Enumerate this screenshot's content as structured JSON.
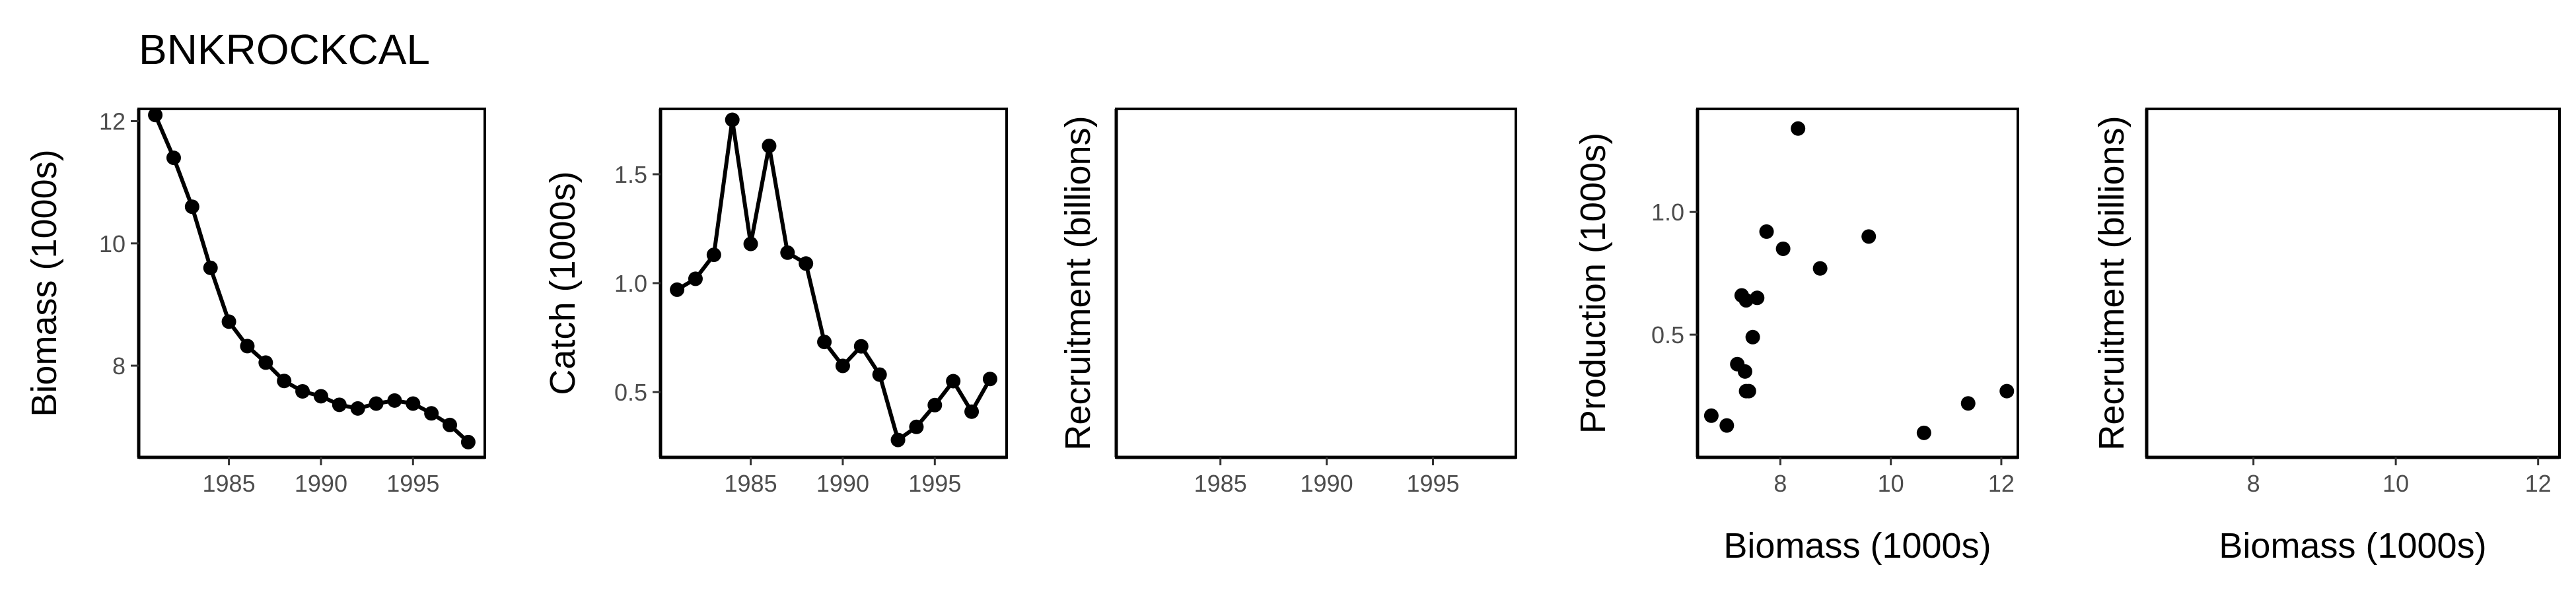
{
  "title": "BNKROCKCAL",
  "colors": {
    "series": "#000000",
    "axis": "#000000",
    "tick_label": "#4d4d4d",
    "background": "#ffffff"
  },
  "chart_data": [
    {
      "id": "biomass",
      "type": "line",
      "markers": true,
      "xlabel": "",
      "ylabel": "Biomass (1000s)",
      "xlim": [
        1980.1,
        1998.9
      ],
      "ylim": [
        6.5,
        12.2
      ],
      "xticks": [
        1985,
        1990,
        1995
      ],
      "yticks": [
        8,
        10,
        12
      ],
      "x": [
        1981,
        1982,
        1983,
        1984,
        1985,
        1986,
        1987,
        1988,
        1989,
        1990,
        1991,
        1992,
        1993,
        1994,
        1995,
        1996,
        1997,
        1998
      ],
      "y": [
        12.1,
        11.4,
        10.6,
        9.6,
        8.72,
        8.32,
        8.05,
        7.75,
        7.58,
        7.5,
        7.36,
        7.3,
        7.38,
        7.43,
        7.38,
        7.22,
        7.03,
        6.75
      ]
    },
    {
      "id": "catch",
      "type": "line",
      "markers": true,
      "xlabel": "",
      "ylabel": "Catch (1000s)",
      "xlim": [
        1980.1,
        1998.9
      ],
      "ylim": [
        0.2,
        1.8
      ],
      "xticks": [
        1985,
        1990,
        1995
      ],
      "yticks": [
        0.5,
        1.0,
        1.5
      ],
      "ytick_labels": [
        "0.5",
        "1.0",
        "1.5"
      ],
      "x": [
        1981,
        1982,
        1983,
        1984,
        1985,
        1986,
        1987,
        1988,
        1989,
        1990,
        1991,
        1992,
        1993,
        1994,
        1995,
        1996,
        1997,
        1998
      ],
      "y": [
        0.97,
        1.02,
        1.13,
        1.75,
        1.18,
        1.63,
        1.14,
        1.09,
        0.73,
        0.62,
        0.71,
        0.58,
        0.28,
        0.34,
        0.44,
        0.55,
        0.41,
        0.56
      ]
    },
    {
      "id": "recruitment-time",
      "type": "line",
      "markers": false,
      "xlabel": "",
      "ylabel": "Recruitment (billions)",
      "xlim": [
        1980.1,
        1998.9
      ],
      "xticks": [
        1985,
        1990,
        1995
      ],
      "yticks": [],
      "x": [],
      "y": []
    },
    {
      "id": "production",
      "type": "scatter",
      "xlabel": "Biomass (1000s)",
      "ylabel": "Production (1000s)",
      "xlim": [
        6.5,
        12.3
      ],
      "ylim": [
        0.0,
        1.42
      ],
      "xticks": [
        8,
        10,
        12
      ],
      "yticks": [
        0.5,
        1.0
      ],
      "ytick_labels": [
        "0.5",
        "1.0"
      ],
      "x": [
        6.75,
        7.03,
        7.22,
        7.3,
        7.36,
        7.38,
        7.43,
        7.38,
        7.5,
        7.58,
        7.75,
        8.05,
        8.32,
        8.72,
        9.6,
        10.6,
        11.4,
        12.1
      ],
      "y": [
        0.17,
        0.13,
        0.38,
        0.66,
        0.35,
        0.27,
        0.27,
        0.64,
        0.49,
        0.65,
        0.92,
        0.85,
        1.34,
        0.77,
        0.9,
        0.1,
        0.22,
        0.27
      ]
    },
    {
      "id": "recruitment-biomass",
      "type": "scatter",
      "xlabel": "Biomass (1000s)",
      "ylabel": "Recruitment (billions)",
      "xlim": [
        6.5,
        12.3
      ],
      "xticks": [
        8,
        10,
        12
      ],
      "yticks": [],
      "x": [],
      "y": []
    }
  ]
}
